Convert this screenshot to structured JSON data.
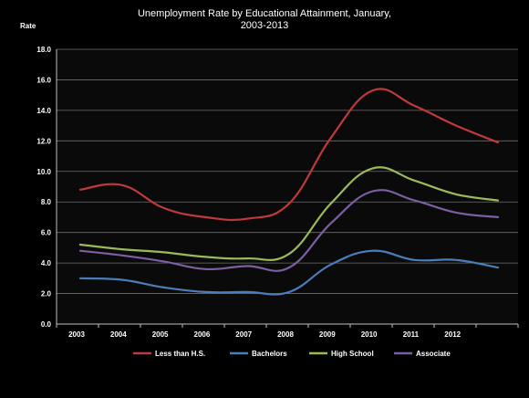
{
  "chart_data": {
    "type": "line",
    "title_line1": "Unemployment Rate by Educational Attainment, January,",
    "title_line2": "2003-2013",
    "ylabel": "Rate",
    "xlabel": "",
    "ylim": [
      0,
      18
    ],
    "yticks": [
      "0.0",
      "2.0",
      "4.0",
      "6.0",
      "8.0",
      "10.0",
      "12.0",
      "14.0",
      "16.0",
      "18.0"
    ],
    "categories": [
      "2003",
      "2004",
      "2005",
      "2006",
      "2007",
      "2008",
      "2009",
      "2010",
      "2011",
      "2012",
      ""
    ],
    "grid": true,
    "legend_position": "bottom",
    "series": [
      {
        "name": "Less than H.S.",
        "color": "#c0393b",
        "values": [
          8.8,
          9.1,
          7.6,
          7.0,
          6.9,
          7.9,
          12.2,
          15.3,
          14.3,
          13.0,
          11.9
        ]
      },
      {
        "name": "Bachelors",
        "color": "#4a7ebb",
        "values": [
          3.0,
          2.9,
          2.4,
          2.1,
          2.1,
          2.1,
          3.9,
          4.8,
          4.2,
          4.2,
          3.7
        ]
      },
      {
        "name": "High School",
        "color": "#9bbb59",
        "values": [
          5.2,
          4.9,
          4.7,
          4.4,
          4.3,
          4.6,
          7.9,
          10.2,
          9.4,
          8.5,
          8.1
        ]
      },
      {
        "name": "Associate",
        "color": "#7e5ea2",
        "values": [
          4.8,
          4.5,
          4.1,
          3.6,
          3.8,
          3.7,
          6.6,
          8.7,
          8.1,
          7.3,
          7.0
        ]
      }
    ]
  },
  "colors": {
    "background": "#000000",
    "plot_area": "#0a0a0a",
    "grid": "#6e6e6e",
    "text": "#ffffff"
  }
}
